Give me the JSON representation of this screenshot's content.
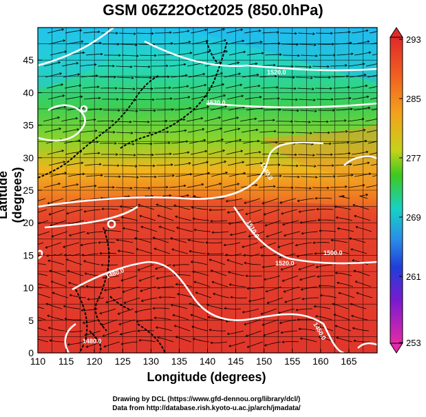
{
  "title": "GSM 06Z22Oct2025 (850.0hPa)",
  "axes": {
    "xlabel": "Longitude (degrees)",
    "ylabel": "Latitude  (degrees)",
    "x_ticks": [
      "110",
      "115",
      "120",
      "125",
      "130",
      "135",
      "140",
      "145",
      "150",
      "155",
      "160",
      "165"
    ],
    "y_ticks": [
      "0",
      "5",
      "10",
      "15",
      "20",
      "25",
      "30",
      "35",
      "40",
      "45"
    ]
  },
  "colorbar": {
    "ticks": [
      "293",
      "285",
      "277",
      "269",
      "261",
      "253"
    ],
    "colors": [
      "#e0302a",
      "#f07b22",
      "#f6c61a",
      "#46c21c",
      "#16d2c4",
      "#2a8ee8",
      "#1f3fd8",
      "#8a1bc4",
      "#e42aa6"
    ]
  },
  "contour_labels": [
    "1520.0",
    "1520.0",
    "1540.0",
    "1510.0",
    "1520.0",
    "1500.0",
    "1480.0",
    "1480.0",
    "1450.0"
  ],
  "credits": {
    "line1": "Drawing by DCL (https://www.gfd-dennou.org/library/dcl/)",
    "line2": "Data from http://database.rish.kyoto-u.ac.jp/arch/jmadata/"
  }
}
